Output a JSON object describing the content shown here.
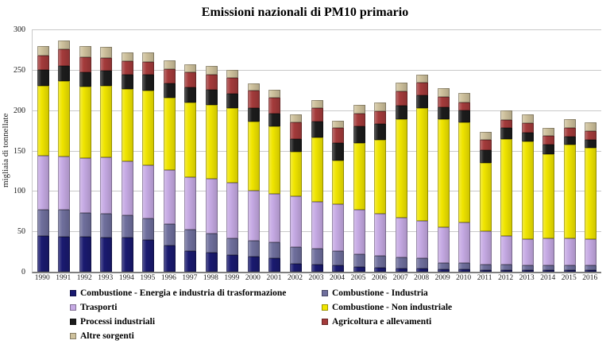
{
  "chart_data": {
    "type": "bar",
    "stacked": true,
    "title": "Emissioni nazionali di PM10 primario",
    "xlabel": "",
    "ylabel": "migliaia di tonnellate",
    "ylim": [
      0,
      300
    ],
    "yticks": [
      0,
      50,
      100,
      150,
      200,
      250,
      300
    ],
    "grid": true,
    "legend_position": "bottom",
    "categories": [
      "1990",
      "1991",
      "1992",
      "1993",
      "1994",
      "1995",
      "1996",
      "1997",
      "1998",
      "1999",
      "2000",
      "2001",
      "2002",
      "2003",
      "2004",
      "2005",
      "2006",
      "2007",
      "2008",
      "2009",
      "2010",
      "2011",
      "2012",
      "2013",
      "2014",
      "2015",
      "2016"
    ],
    "series": [
      {
        "name": "Combustione - Energia e industria di trasformazione",
        "color": "#1a1a70",
        "values": [
          44,
          43,
          43,
          42,
          42,
          39,
          32,
          26,
          24,
          21,
          19,
          17,
          10,
          9,
          8,
          6,
          5,
          4,
          4,
          3,
          3,
          2,
          2,
          2,
          2,
          2,
          2
        ]
      },
      {
        "name": "Combustione - Industria",
        "color": "#6f6f9d",
        "values": [
          33,
          34,
          30,
          30,
          28,
          27,
          27,
          26,
          23,
          20,
          19,
          19,
          21,
          20,
          18,
          16,
          15,
          14,
          13,
          8,
          8,
          7,
          7,
          6,
          6,
          6,
          6
        ]
      },
      {
        "name": "Trasporti",
        "color": "#c6aae4",
        "values": [
          67,
          66,
          68,
          70,
          67,
          66,
          67,
          65,
          68,
          69,
          62,
          60,
          62,
          58,
          58,
          55,
          52,
          49,
          46,
          44,
          50,
          41,
          35,
          32,
          33,
          33,
          32
        ]
      },
      {
        "name": "Combustione - Non industriale",
        "color": "#f0e500",
        "values": [
          86,
          93,
          88,
          88,
          89,
          92,
          89,
          93,
          92,
          93,
          86,
          84,
          56,
          79,
          54,
          82,
          91,
          122,
          140,
          134,
          124,
          85,
          120,
          121,
          105,
          116,
          113
        ]
      },
      {
        "name": "Processi industriali",
        "color": "#1c1c1c",
        "values": [
          20,
          19,
          18,
          19,
          18,
          20,
          18,
          18,
          18,
          17,
          17,
          16,
          15,
          20,
          21,
          21,
          20,
          17,
          15,
          15,
          15,
          16,
          14,
          11,
          11,
          10,
          10
        ]
      },
      {
        "name": "Agricoltura e allevamenti",
        "color": "#a43b3b",
        "values": [
          18,
          20,
          19,
          16,
          17,
          16,
          18,
          19,
          19,
          20,
          21,
          19,
          21,
          17,
          19,
          16,
          16,
          17,
          16,
          12,
          10,
          12,
          10,
          12,
          11,
          11,
          11
        ]
      },
      {
        "name": "Altre sorgenti",
        "color": "#cec19c",
        "values": [
          11,
          11,
          13,
          13,
          11,
          12,
          11,
          10,
          11,
          10,
          9,
          10,
          10,
          10,
          9,
          11,
          11,
          11,
          10,
          11,
          11,
          10,
          12,
          11,
          10,
          11,
          11
        ]
      }
    ]
  }
}
